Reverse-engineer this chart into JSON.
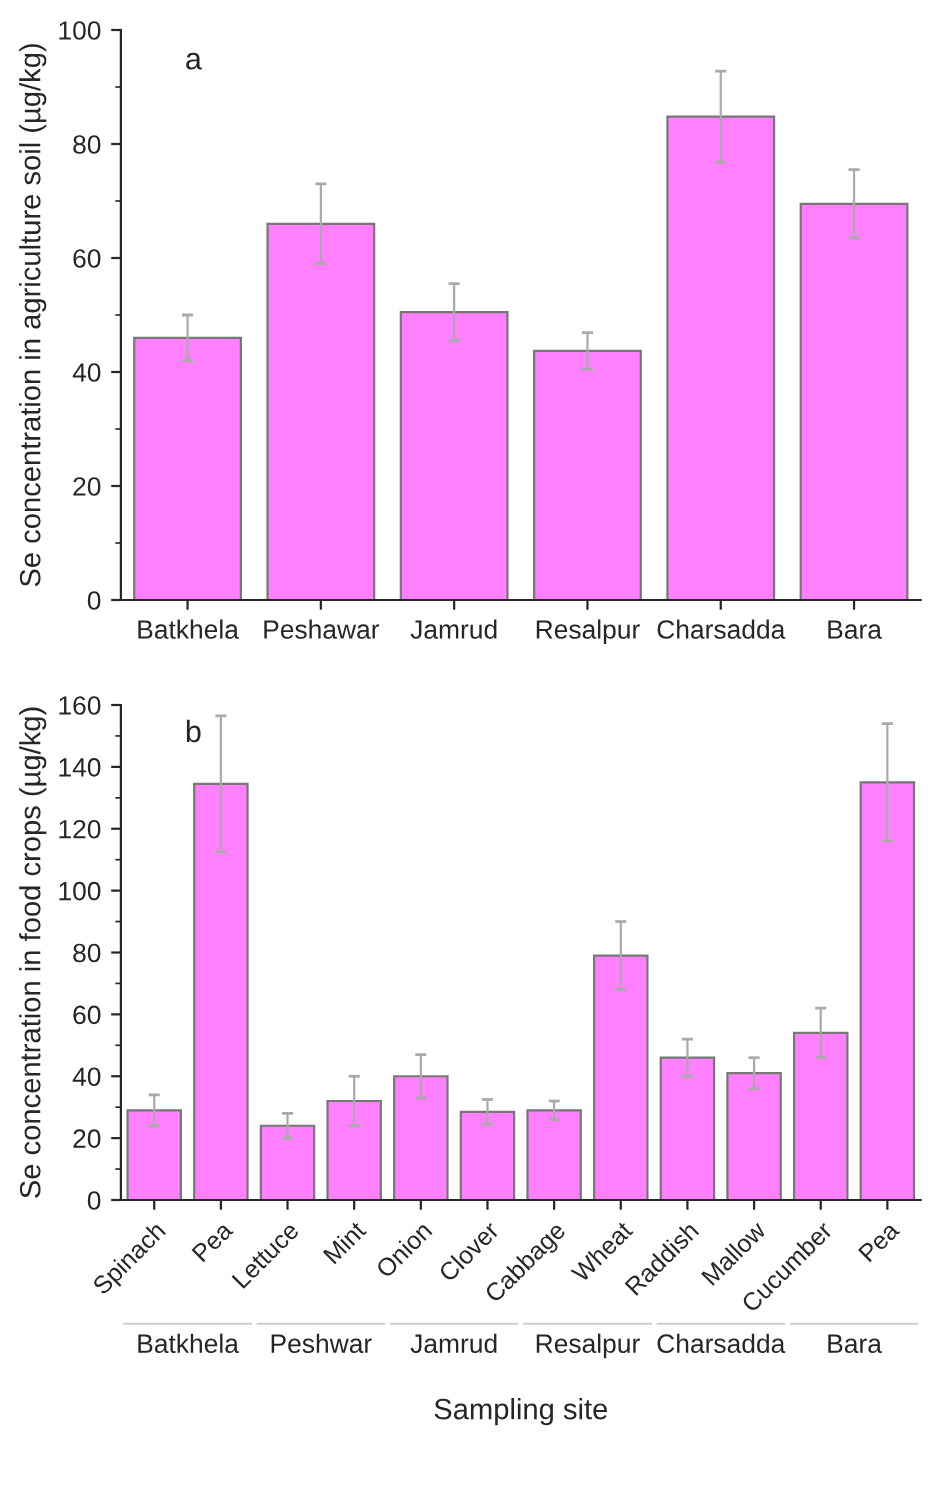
{
  "chart_data": [
    {
      "type": "bar",
      "title": "a",
      "ylabel": "Se concentration in agriculture soil (µg/kg)",
      "categories": [
        "Batkhela",
        "Peshawar",
        "Jamrud",
        "Resalpur",
        "Charsadda",
        "Bara"
      ],
      "values": [
        46,
        66,
        50.5,
        43.7,
        84.8,
        69.5
      ],
      "errors": [
        4,
        7,
        5,
        3.2,
        8,
        6
      ],
      "color": "#ff80ff",
      "ylim": [
        0,
        100
      ],
      "yticks": [
        0,
        20,
        40,
        60,
        80,
        100
      ],
      "grid": false,
      "legend": false
    },
    {
      "type": "bar",
      "title": "b",
      "ylabel": "Se concentration in food crops (µg/kg)",
      "xlabel": "Sampling site",
      "categories": [
        "Spinach",
        "Pea",
        "Lettuce",
        "Mint",
        "Onion",
        "Clover",
        "Cabbage",
        "Wheat",
        "Raddish",
        "Mallow",
        "Cucumber",
        "Pea"
      ],
      "values": [
        29,
        134.5,
        24,
        32,
        40,
        28.5,
        29,
        79,
        46,
        41,
        54,
        135
      ],
      "errors": [
        5,
        22,
        4,
        8,
        7,
        4,
        3,
        11,
        6,
        5,
        8,
        19
      ],
      "color": "#ff80ff",
      "ylim": [
        0,
        160
      ],
      "yticks": [
        0,
        20,
        40,
        60,
        80,
        100,
        120,
        140,
        160
      ],
      "grid": false,
      "legend": false,
      "annotations": [
        "Batkhela",
        "Peshwar",
        "Jamrud",
        "Resalpur",
        "Charsadda",
        "Bara"
      ]
    }
  ]
}
